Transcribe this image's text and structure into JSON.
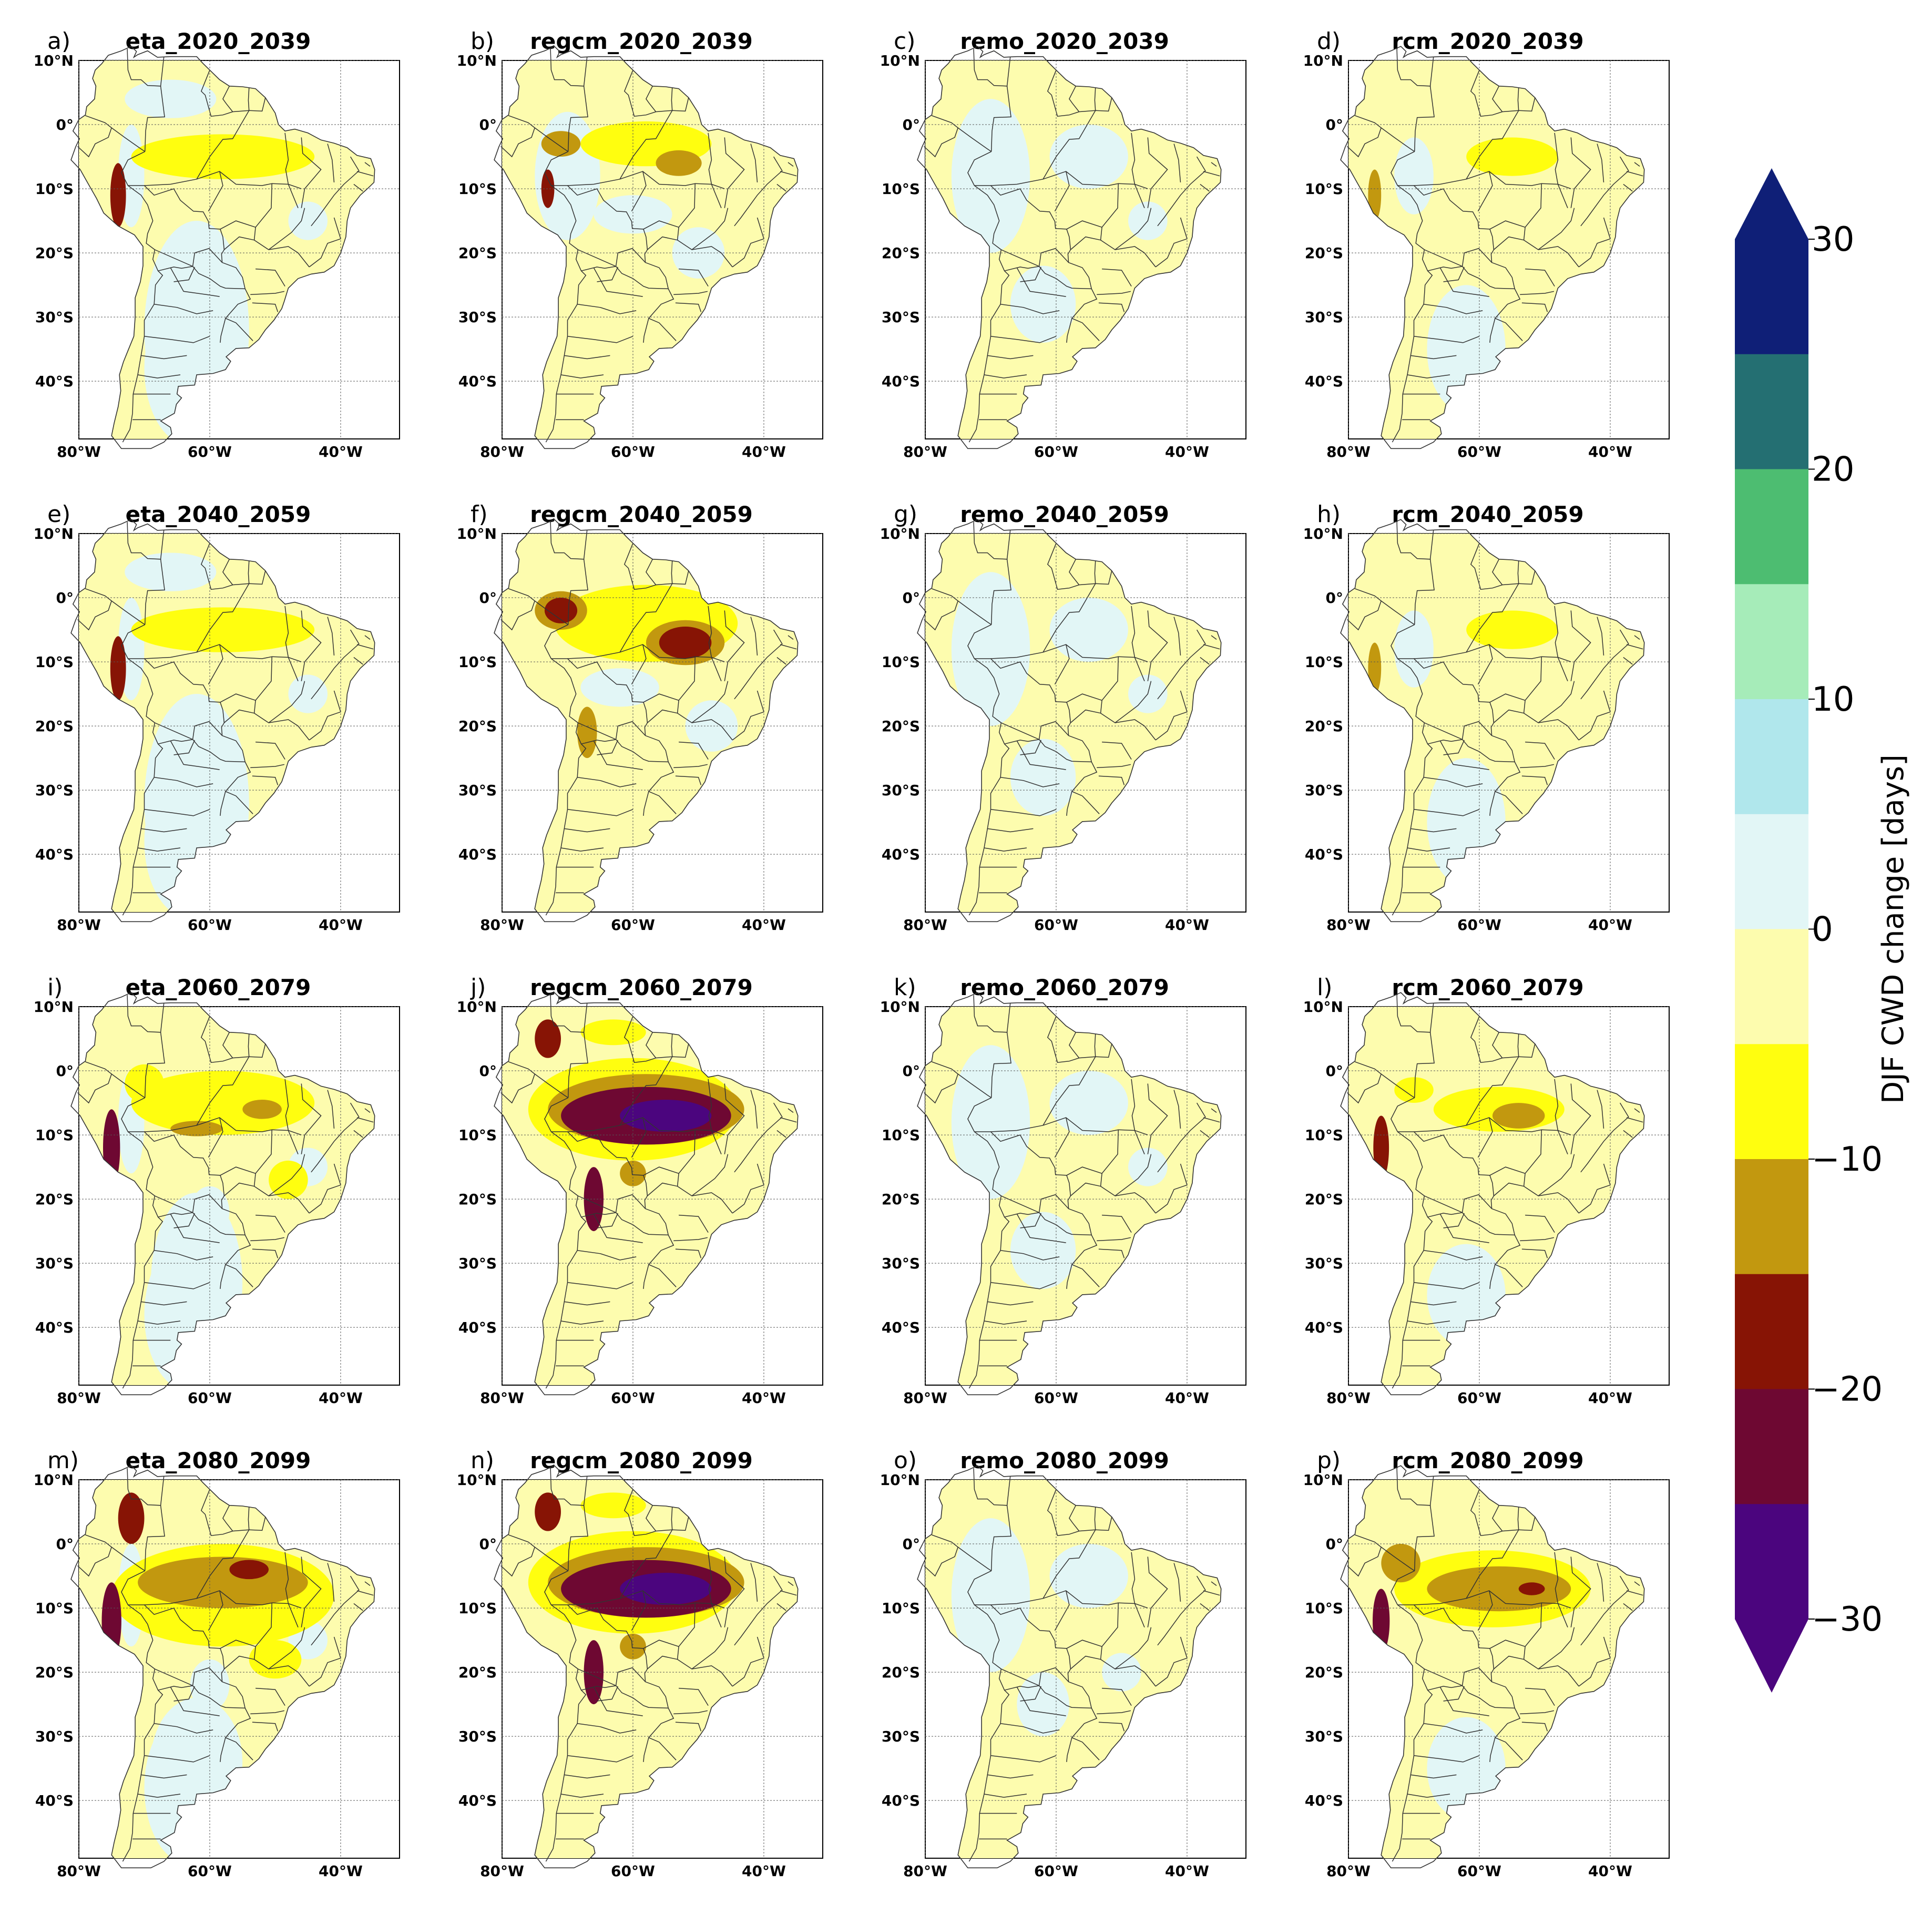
{
  "figure": {
    "colors": {
      "ocean": "#ffffff",
      "land_base": "#fdfcae",
      "border": "#333333",
      "grid": "#555555"
    },
    "panels": [
      {
        "letter": "a)",
        "title": "eta_2020_2039",
        "model": "eta",
        "period": "2020_2039",
        "intensity": 1
      },
      {
        "letter": "b)",
        "title": "regcm_2020_2039",
        "model": "regcm",
        "period": "2020_2039",
        "intensity": 1
      },
      {
        "letter": "c)",
        "title": "remo_2020_2039",
        "model": "remo",
        "period": "2020_2039",
        "intensity": 0
      },
      {
        "letter": "d)",
        "title": "rcm_2020_2039",
        "model": "rcm",
        "period": "2020_2039",
        "intensity": 1
      },
      {
        "letter": "e)",
        "title": "eta_2040_2059",
        "model": "eta",
        "period": "2040_2059",
        "intensity": 1
      },
      {
        "letter": "f)",
        "title": "regcm_2040_2059",
        "model": "regcm",
        "period": "2040_2059",
        "intensity": 2
      },
      {
        "letter": "g)",
        "title": "remo_2040_2059",
        "model": "remo",
        "period": "2040_2059",
        "intensity": 0
      },
      {
        "letter": "h)",
        "title": "rcm_2040_2059",
        "model": "rcm",
        "period": "2040_2059",
        "intensity": 1
      },
      {
        "letter": "i)",
        "title": "eta_2060_2079",
        "model": "eta",
        "period": "2060_2079",
        "intensity": 2
      },
      {
        "letter": "j)",
        "title": "regcm_2060_2079",
        "model": "regcm",
        "period": "2060_2079",
        "intensity": 3
      },
      {
        "letter": "k)",
        "title": "remo_2060_2079",
        "model": "remo",
        "period": "2060_2079",
        "intensity": 0
      },
      {
        "letter": "l)",
        "title": "rcm_2060_2079",
        "model": "rcm",
        "period": "2060_2079",
        "intensity": 2
      },
      {
        "letter": "m)",
        "title": "eta_2080_2099",
        "model": "eta",
        "period": "2080_2099",
        "intensity": 3
      },
      {
        "letter": "n)",
        "title": "regcm_2080_2099",
        "model": "regcm",
        "period": "2080_2099",
        "intensity": 4
      },
      {
        "letter": "o)",
        "title": "remo_2080_2099",
        "model": "remo",
        "period": "2080_2099",
        "intensity": 1
      },
      {
        "letter": "p)",
        "title": "rcm_2080_2099",
        "model": "rcm",
        "period": "2080_2099",
        "intensity": 3
      }
    ],
    "lat_ticks": [
      {
        "value": 10,
        "label": "10°N"
      },
      {
        "value": 0,
        "label": "0°"
      },
      {
        "value": -10,
        "label": "10°S"
      },
      {
        "value": -20,
        "label": "20°S"
      },
      {
        "value": -30,
        "label": "30°S"
      },
      {
        "value": -40,
        "label": "40°S"
      }
    ],
    "lon_ticks": [
      {
        "value": -80,
        "label": "80°W"
      },
      {
        "value": -60,
        "label": "60°W"
      },
      {
        "value": -40,
        "label": "40°W"
      }
    ],
    "map_extent": {
      "lon_min": -80,
      "lon_max": -31,
      "lat_min": -49,
      "lat_max": 10
    }
  },
  "colorbar": {
    "label": "DJF CWD change [days]",
    "extend": "both",
    "range": [
      -30,
      30
    ],
    "ticks": [
      {
        "value": 30,
        "label": "30"
      },
      {
        "value": 20,
        "label": "20"
      },
      {
        "value": 10,
        "label": "10"
      },
      {
        "value": 0,
        "label": "0"
      },
      {
        "value": -10,
        "label": "−10"
      },
      {
        "value": -20,
        "label": "−20"
      },
      {
        "value": -30,
        "label": "−30"
      }
    ],
    "bins": [
      {
        "from": 25,
        "to": 30,
        "color": "#0f1f77"
      },
      {
        "from": 20,
        "to": 25,
        "color": "#246f72"
      },
      {
        "from": 15,
        "to": 20,
        "color": "#4dbd71"
      },
      {
        "from": 10,
        "to": 15,
        "color": "#a6ecb9"
      },
      {
        "from": 5,
        "to": 10,
        "color": "#b0e7ec"
      },
      {
        "from": 0,
        "to": 5,
        "color": "#e2f6f6"
      },
      {
        "from": -5,
        "to": 0,
        "color": "#fdfcae"
      },
      {
        "from": -10,
        "to": -5,
        "color": "#fffe0f"
      },
      {
        "from": -15,
        "to": -10,
        "color": "#c2980f"
      },
      {
        "from": -20,
        "to": -15,
        "color": "#871405"
      },
      {
        "from": -25,
        "to": -20,
        "color": "#6e0832"
      },
      {
        "from": -30,
        "to": -25,
        "color": "#4b057e"
      }
    ],
    "upper_extend_color": "#0f1f77",
    "lower_extend_color": "#4b057e"
  }
}
